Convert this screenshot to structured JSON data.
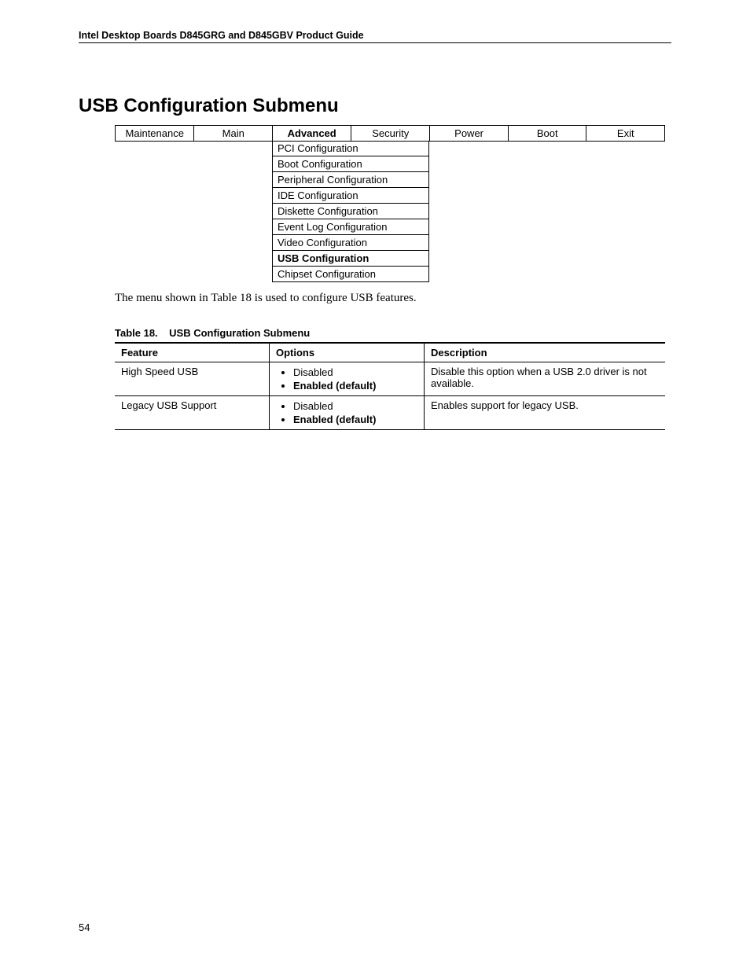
{
  "header": "Intel Desktop Boards D845GRG and D845GBV Product Guide",
  "page_number": "54",
  "section_title": "USB Configuration Submenu",
  "bios_tabs": [
    "Maintenance",
    "Main",
    "Advanced",
    "Security",
    "Power",
    "Boot",
    "Exit"
  ],
  "bios_active_tab": "Advanced",
  "submenu_items": [
    {
      "label": "PCI Configuration",
      "bold": false
    },
    {
      "label": "Boot Configuration",
      "bold": false
    },
    {
      "label": "Peripheral Configuration",
      "bold": false
    },
    {
      "label": "IDE Configuration",
      "bold": false
    },
    {
      "label": "Diskette  Configuration",
      "bold": false
    },
    {
      "label": "Event Log Configuration",
      "bold": false
    },
    {
      "label": "Video Configuration",
      "bold": false
    },
    {
      "label": "USB Configuration",
      "bold": true
    },
    {
      "label": "Chipset Configuration",
      "bold": false
    }
  ],
  "body_text": "The menu shown in Table 18 is used to configure USB features.",
  "table_caption_prefix": "Table 18.",
  "table_caption_title": "USB Configuration Submenu",
  "feature_headers": {
    "feature": "Feature",
    "options": "Options",
    "description": "Description"
  },
  "feature_rows": [
    {
      "feature": "High Speed USB",
      "options": [
        {
          "text": "Disabled",
          "bold": false
        },
        {
          "text": "Enabled (default)",
          "bold": true
        }
      ],
      "description": "Disable this option when a USB 2.0 driver is not available."
    },
    {
      "feature": "Legacy USB Support",
      "options": [
        {
          "text": "Disabled",
          "bold": false
        },
        {
          "text": "Enabled (default)",
          "bold": true
        }
      ],
      "description": "Enables support for legacy USB."
    }
  ]
}
